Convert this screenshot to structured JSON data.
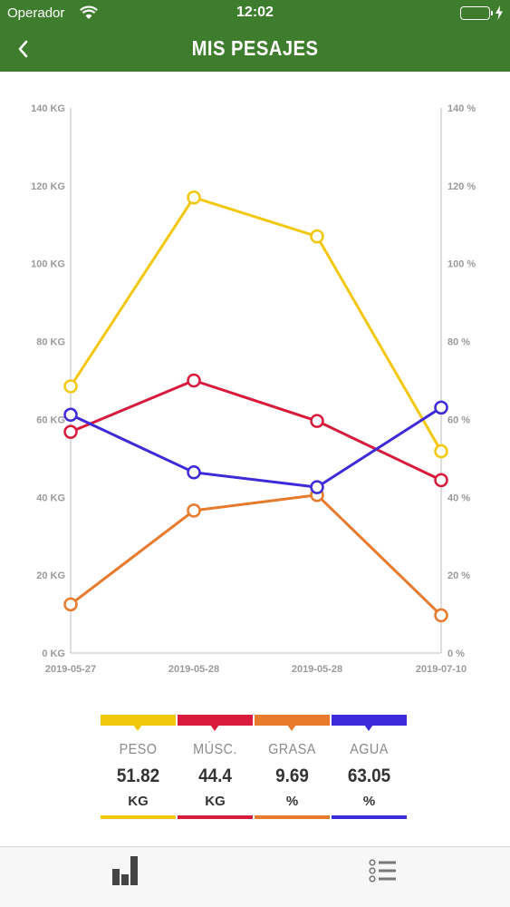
{
  "status_bar": {
    "carrier": "Operador",
    "time": "12:02",
    "battery_color": "#4cd964"
  },
  "header": {
    "title": "MIS PESAJES",
    "background": "#3f7d2e"
  },
  "chart_data": {
    "type": "line",
    "categories": [
      "2019-05-27",
      "2019-05-28",
      "2019-05-28",
      "2019-07-10"
    ],
    "y_left": {
      "ticks": [
        "0 KG",
        "20 KG",
        "40 KG",
        "60 KG",
        "80 KG",
        "100 KG",
        "120 KG",
        "140 KG"
      ],
      "ylim": [
        0,
        140
      ]
    },
    "y_right": {
      "ticks": [
        "0 %",
        "20 %",
        "40 %",
        "60 %",
        "80 %",
        "100 %",
        "120 %",
        "140 %"
      ],
      "ylim": [
        0,
        140
      ]
    },
    "series": [
      {
        "name": "PESO",
        "axis": "left",
        "color": "#f2c80f",
        "values": [
          68.5,
          117,
          107,
          51.82
        ]
      },
      {
        "name": "MÚSC.",
        "axis": "left",
        "color": "#d81b3c",
        "values": [
          56.8,
          70,
          59.6,
          44.4
        ]
      },
      {
        "name": "GRASA",
        "axis": "right",
        "color": "#e87a2c",
        "values": [
          12.5,
          36.6,
          40.6,
          9.69
        ]
      },
      {
        "name": "AGUA",
        "axis": "right",
        "color": "#3d2ad8",
        "values": [
          61.2,
          46.4,
          42.6,
          63.05
        ]
      }
    ],
    "grid": false
  },
  "legend": [
    {
      "name": "PESO",
      "value": "51.82",
      "unit": "KG",
      "color": "#f2c80f"
    },
    {
      "name": "MÚSC.",
      "value": "44.4",
      "unit": "KG",
      "color": "#d81b3c"
    },
    {
      "name": "GRASA",
      "value": "9.69",
      "unit": "%",
      "color": "#e87a2c"
    },
    {
      "name": "AGUA",
      "value": "63.05",
      "unit": "%",
      "color": "#3d2ad8"
    }
  ],
  "tab_bar": {
    "tabs": [
      {
        "icon": "bar-chart-icon",
        "active": true
      },
      {
        "icon": "list-icon",
        "active": false
      }
    ]
  }
}
